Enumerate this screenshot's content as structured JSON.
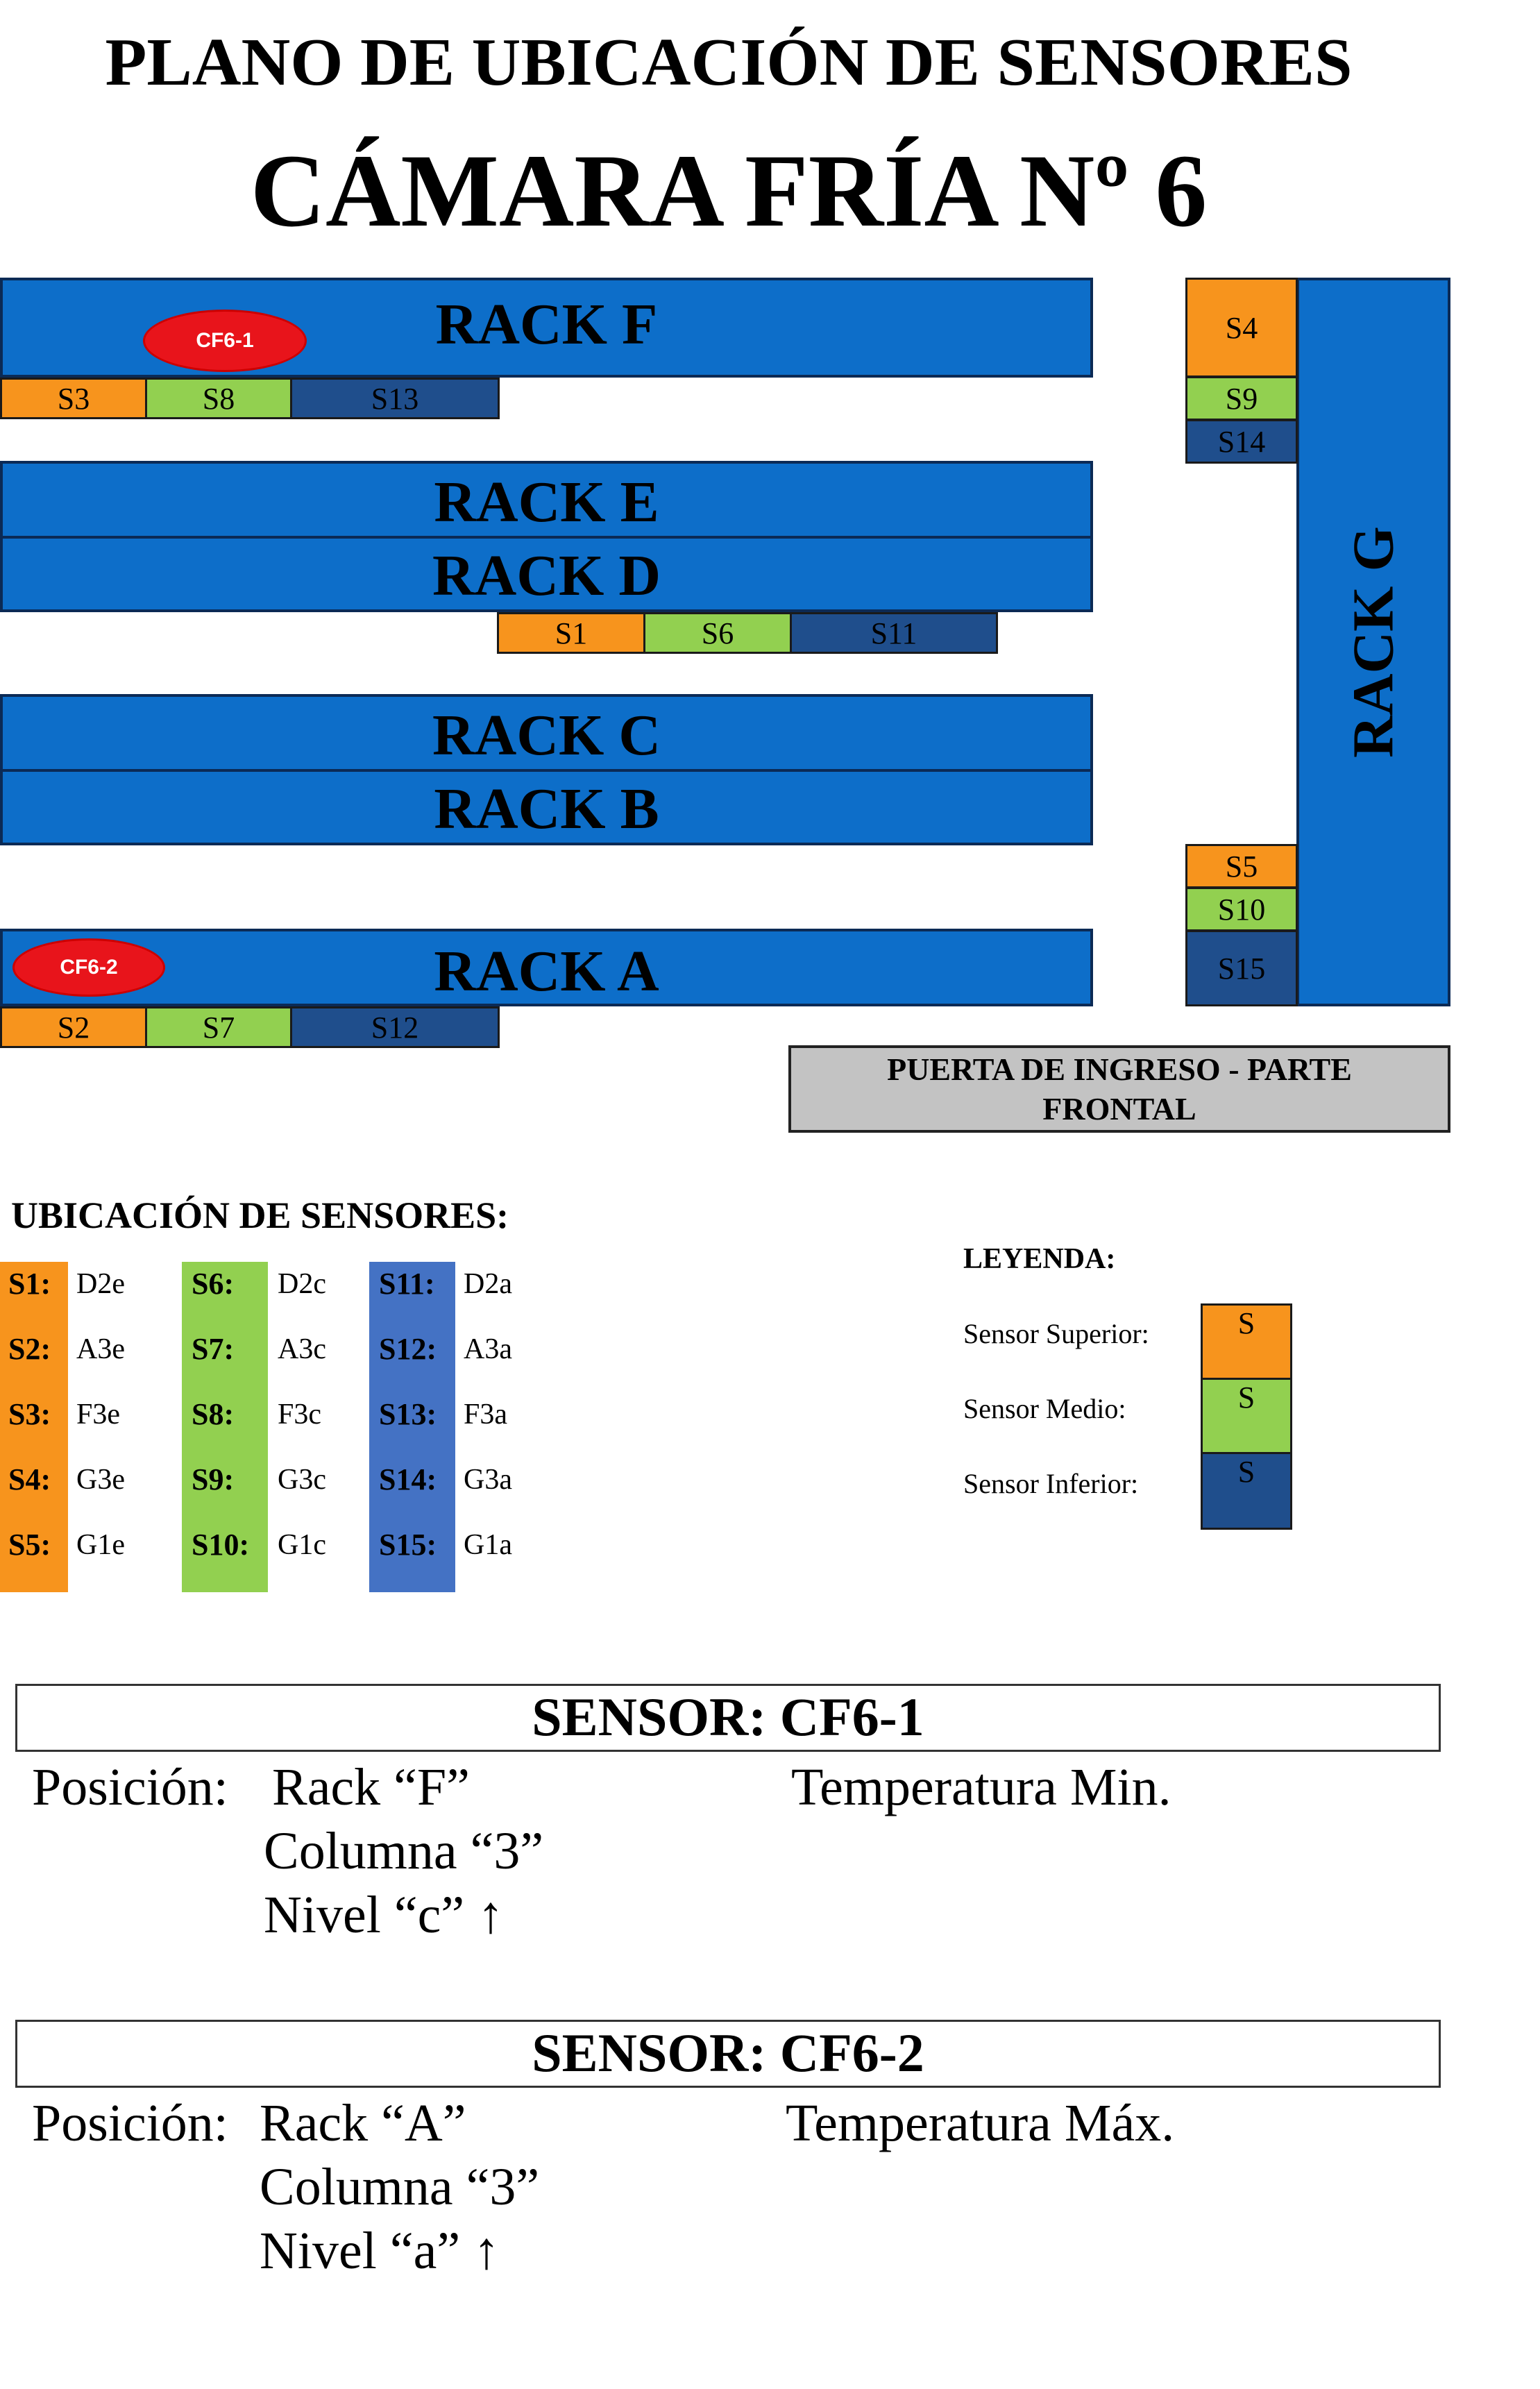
{
  "title_line1": "PLANO DE UBICACIÓN DE SENSORES",
  "title_line2": "CÁMARA FRÍA Nº 6",
  "colors": {
    "rack": "#0d6ec9",
    "superior": "#f7941d",
    "medio": "#92d050",
    "inferior": "#1f4e8c",
    "sensor": "#e8141b",
    "door": "#c3c3c3"
  },
  "racks": {
    "F": "RACK F",
    "E": "RACK E",
    "D": "RACK D",
    "C": "RACK C",
    "B": "RACK B",
    "A": "RACK A",
    "G": "RACK G"
  },
  "markers": {
    "cf61": "CF6-1",
    "cf62": "CF6-2"
  },
  "cells": {
    "s1": "S1",
    "s2": "S2",
    "s3": "S3",
    "s4": "S4",
    "s5": "S5",
    "s6": "S6",
    "s7": "S7",
    "s8": "S8",
    "s9": "S9",
    "s10": "S10",
    "s11": "S11",
    "s12": "S12",
    "s13": "S13",
    "s14": "S14",
    "s15": "S15"
  },
  "door": {
    "line1": "PUERTA DE INGRESO - PARTE",
    "line2": "FRONTAL"
  },
  "locations": {
    "heading": "UBICACIÓN DE SENSORES:",
    "columns": [
      [
        {
          "k": "S1:",
          "v": "D2e"
        },
        {
          "k": "S2:",
          "v": "A3e"
        },
        {
          "k": "S3:",
          "v": "F3e"
        },
        {
          "k": "S4:",
          "v": "G3e"
        },
        {
          "k": "S5:",
          "v": "G1e"
        }
      ],
      [
        {
          "k": "S6:",
          "v": "D2c"
        },
        {
          "k": "S7:",
          "v": "A3c"
        },
        {
          "k": "S8:",
          "v": "F3c"
        },
        {
          "k": "S9:",
          "v": "G3c"
        },
        {
          "k": "S10:",
          "v": "G1c"
        }
      ],
      [
        {
          "k": "S11:",
          "v": "D2a"
        },
        {
          "k": "S12:",
          "v": "A3a"
        },
        {
          "k": "S13:",
          "v": "F3a"
        },
        {
          "k": "S14:",
          "v": "G3a"
        },
        {
          "k": "S15:",
          "v": "G1a"
        }
      ]
    ]
  },
  "legend": {
    "title": "LEYENDA:",
    "superior": "Sensor Superior:",
    "medio": "Sensor Medio:",
    "inferior": "Sensor Inferior:",
    "swatch": "S"
  },
  "sensor1": {
    "title": "SENSOR: CF6-1",
    "pos_label": "Posición:",
    "rack": "Rack “F”",
    "columna": "Columna “3”",
    "nivel": "Nivel “c” ↑",
    "temp": "Temperatura Min."
  },
  "sensor2": {
    "title": "SENSOR: CF6-2",
    "pos_label": "Posición:",
    "rack": "Rack “A”",
    "columna": "Columna “3”",
    "nivel": "Nivel “a” ↑",
    "temp": "Temperatura Máx."
  }
}
